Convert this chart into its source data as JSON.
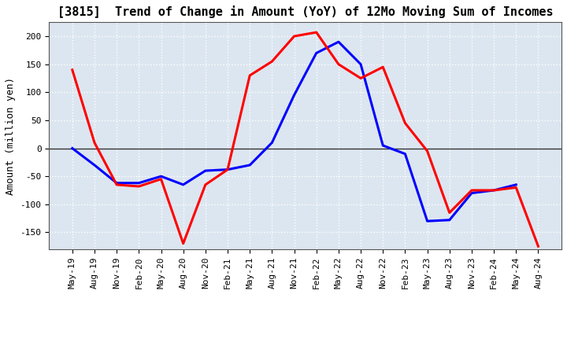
{
  "title": "[3815]  Trend of Change in Amount (YoY) of 12Mo Moving Sum of Incomes",
  "ylabel": "Amount (million yen)",
  "x_labels": [
    "May-19",
    "Aug-19",
    "Nov-19",
    "Feb-20",
    "May-20",
    "Aug-20",
    "Nov-20",
    "Feb-21",
    "May-21",
    "Aug-21",
    "Nov-21",
    "Feb-22",
    "May-22",
    "Aug-22",
    "Nov-22",
    "Feb-23",
    "May-23",
    "Aug-23",
    "Nov-23",
    "Feb-24",
    "May-24",
    "Aug-24"
  ],
  "ordinary_income": [
    0,
    -30,
    -62,
    -62,
    -50,
    -65,
    -40,
    -38,
    -30,
    10,
    95,
    170,
    190,
    150,
    5,
    -10,
    -130,
    -128,
    -80,
    -75,
    -65,
    null
  ],
  "net_income": [
    140,
    10,
    -65,
    -68,
    -55,
    -170,
    -65,
    -38,
    130,
    155,
    200,
    207,
    150,
    125,
    145,
    45,
    -5,
    -115,
    -75,
    -75,
    -70,
    -175
  ],
  "ordinary_color": "#0000ff",
  "net_color": "#ff0000",
  "ylim": [
    -180,
    225
  ],
  "yticks": [
    -150,
    -100,
    -50,
    0,
    50,
    100,
    150,
    200
  ],
  "plot_bg_color": "#dce6f0",
  "fig_bg_color": "#ffffff",
  "grid_color": "#ffffff",
  "title_fontsize": 11,
  "label_fontsize": 9,
  "tick_fontsize": 8,
  "legend_fontsize": 10,
  "linewidth": 2.2
}
